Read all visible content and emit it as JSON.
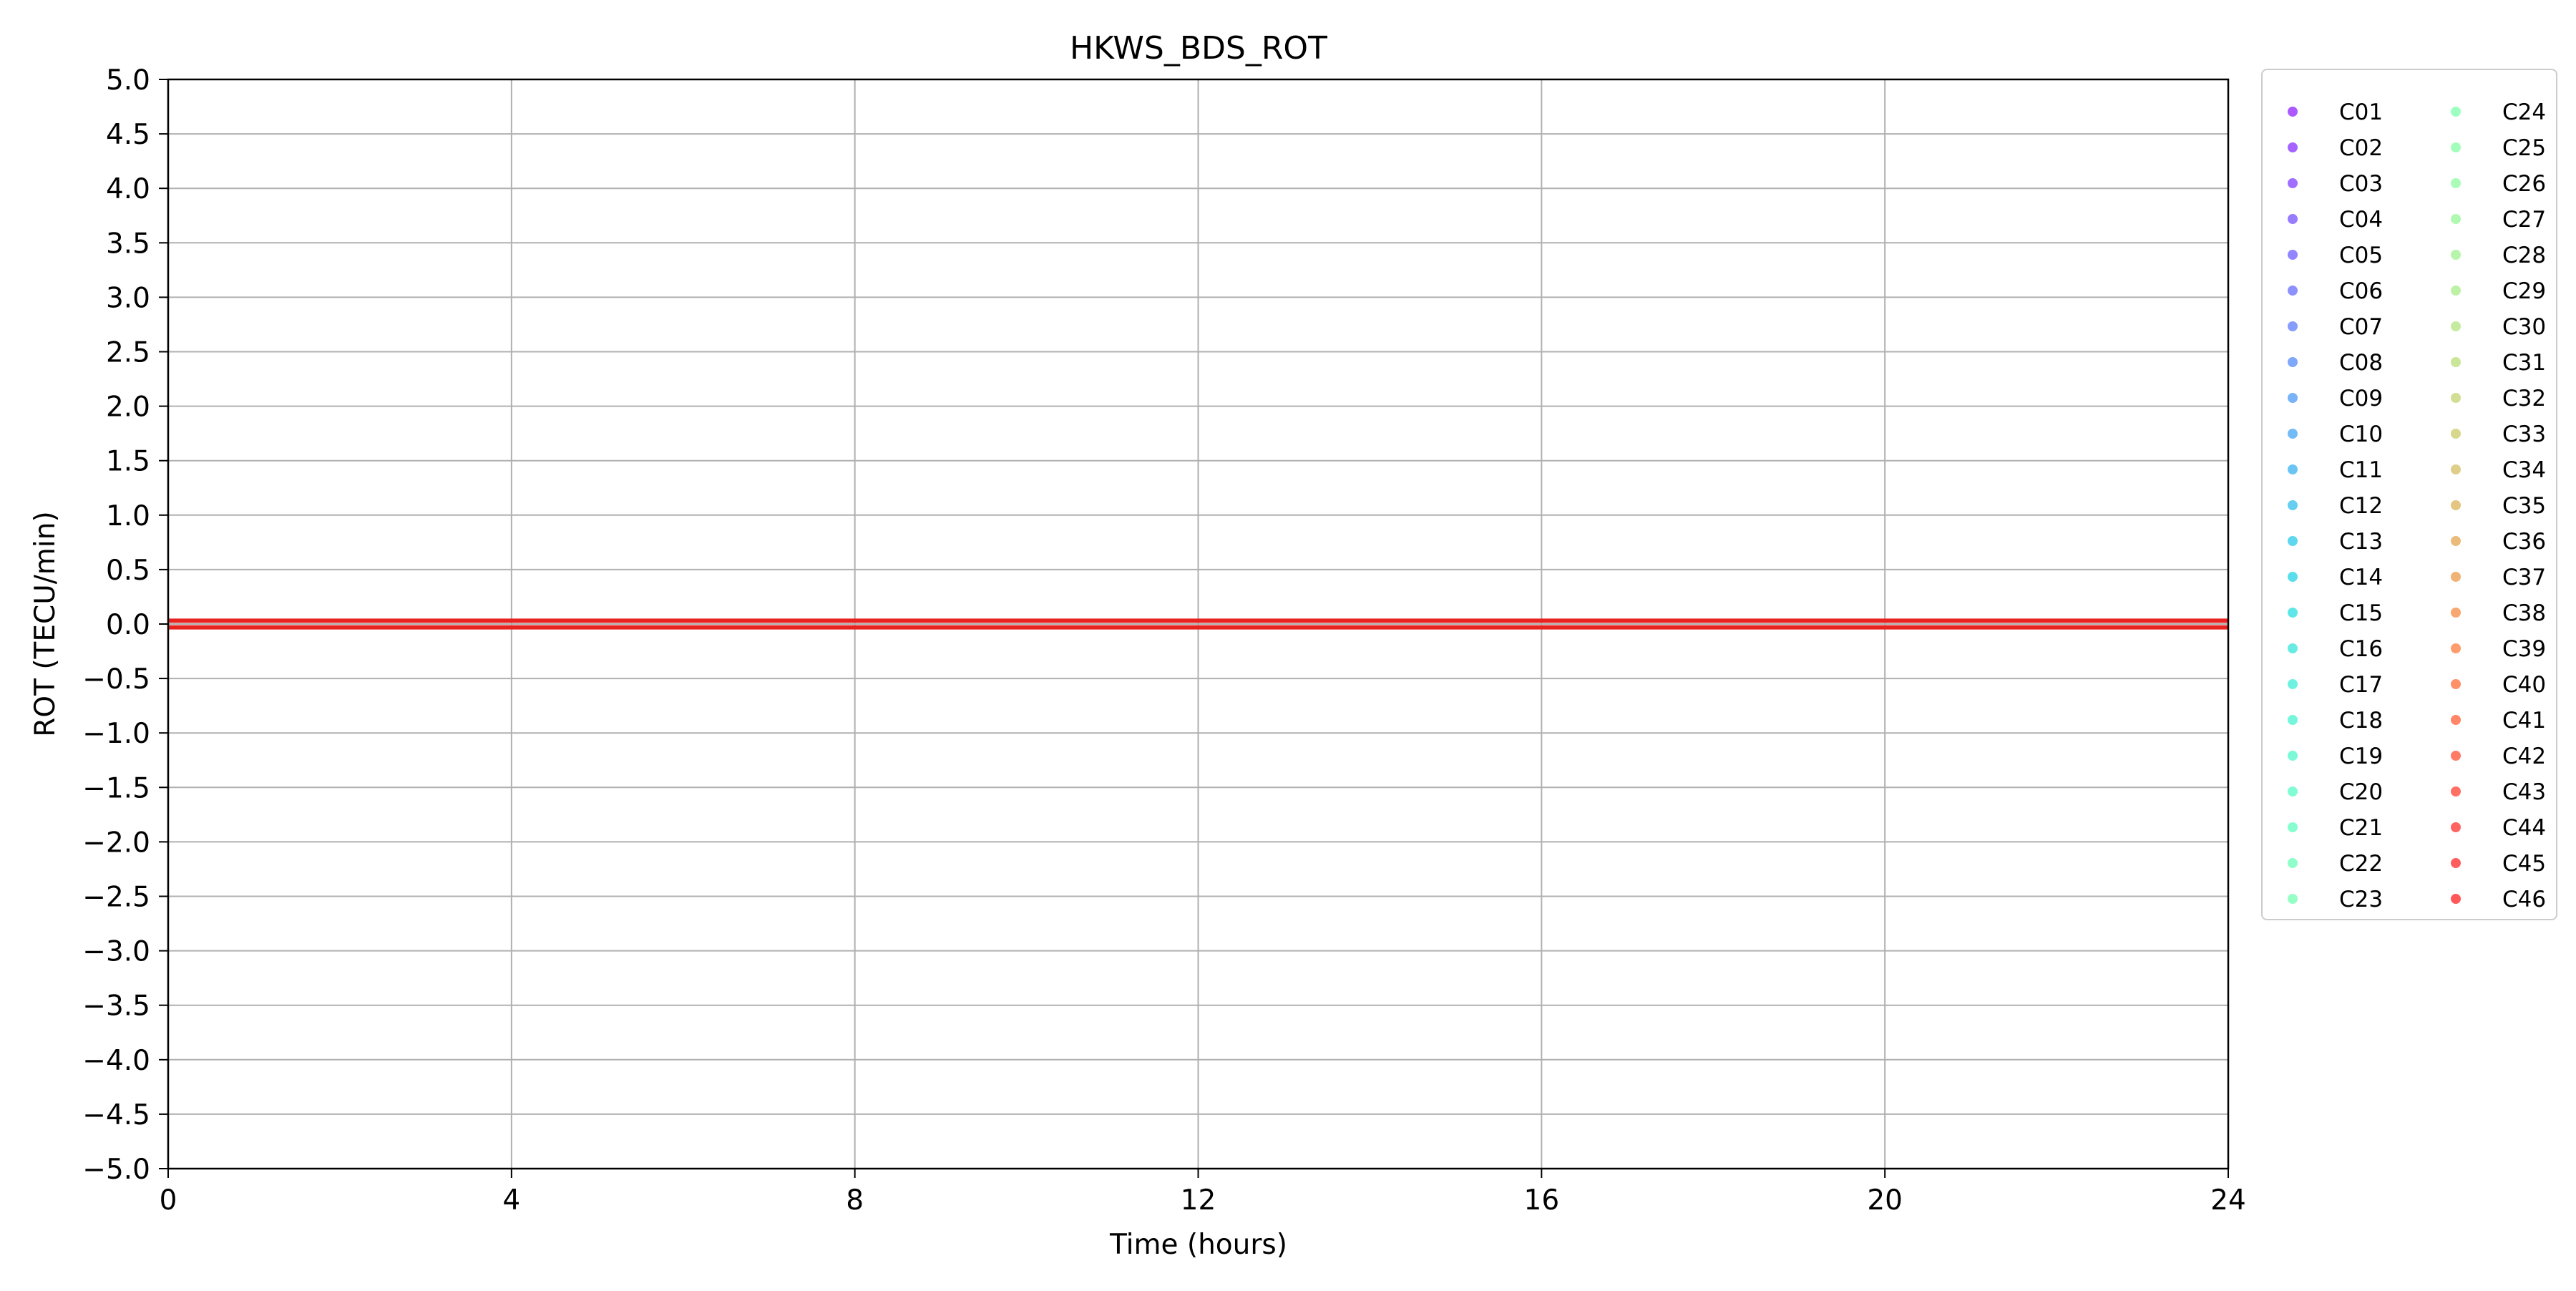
{
  "chart_data": {
    "type": "scatter",
    "title": "HKWS_BDS_ROT",
    "xlabel": "Time (hours)",
    "ylabel": "ROT (TECU/min)",
    "xlim": [
      0,
      24
    ],
    "ylim": [
      -5.0,
      5.0
    ],
    "xticks": [
      0,
      4,
      8,
      12,
      16,
      20,
      24
    ],
    "xtick_labels": [
      "0",
      "4",
      "8",
      "12",
      "16",
      "20",
      "24"
    ],
    "yticks": [
      5.0,
      4.5,
      4.0,
      3.5,
      3.0,
      2.5,
      2.0,
      1.5,
      1.0,
      0.5,
      0.0,
      -0.5,
      -1.0,
      -1.5,
      -2.0,
      -2.5,
      -3.0,
      -3.5,
      -4.0,
      -4.5,
      -5.0
    ],
    "ytick_labels": [
      "5.0",
      "4.5",
      "4.0",
      "3.5",
      "3.0",
      "2.5",
      "2.0",
      "1.5",
      "1.0",
      "0.5",
      "0.0",
      "−0.5",
      "−1.0",
      "−1.5",
      "−2.0",
      "−2.5",
      "−3.0",
      "−3.5",
      "−4.0",
      "−4.5",
      "−5.0"
    ],
    "grid": true,
    "legend_position": "outside right, two columns",
    "reference_lines": [
      {
        "y": 0.03,
        "color": "#e8221f"
      },
      {
        "y": -0.03,
        "color": "#e8221f"
      }
    ],
    "series": [
      {
        "name": "C01",
        "color": "#8000ff",
        "values": []
      },
      {
        "name": "C02",
        "color": "#7711ff",
        "values": []
      },
      {
        "name": "C03",
        "color": "#6c22ff",
        "values": []
      },
      {
        "name": "C04",
        "color": "#6234fe",
        "values": []
      },
      {
        "name": "C05",
        "color": "#5845fd",
        "values": []
      },
      {
        "name": "C06",
        "color": "#4e56fc",
        "values": []
      },
      {
        "name": "C07",
        "color": "#4467fa",
        "values": []
      },
      {
        "name": "C08",
        "color": "#3a78f8",
        "values": []
      },
      {
        "name": "C09",
        "color": "#3088f5",
        "values": []
      },
      {
        "name": "C10",
        "color": "#2697f2",
        "values": []
      },
      {
        "name": "C11",
        "color": "#1ca6ee",
        "values": []
      },
      {
        "name": "C12",
        "color": "#12b4ea",
        "values": []
      },
      {
        "name": "C13",
        "color": "#08c1e6",
        "values": []
      },
      {
        "name": "C14",
        "color": "#02cde1",
        "values": []
      },
      {
        "name": "C15",
        "color": "#0cd8db",
        "values": []
      },
      {
        "name": "C16",
        "color": "#16e1d6",
        "values": []
      },
      {
        "name": "C17",
        "color": "#20e9d0",
        "values": []
      },
      {
        "name": "C18",
        "color": "#2af0ca",
        "values": []
      },
      {
        "name": "C19",
        "color": "#34f6c3",
        "values": []
      },
      {
        "name": "C20",
        "color": "#3efabd",
        "values": []
      },
      {
        "name": "C21",
        "color": "#48fdb6",
        "values": []
      },
      {
        "name": "C22",
        "color": "#52ffae",
        "values": []
      },
      {
        "name": "C23",
        "color": "#5cffa7",
        "values": []
      },
      {
        "name": "C24",
        "color": "#68ff9f",
        "values": []
      },
      {
        "name": "C25",
        "color": "#72fd97",
        "values": []
      },
      {
        "name": "C26",
        "color": "#7cfa8f",
        "values": []
      },
      {
        "name": "C27",
        "color": "#86f686",
        "values": []
      },
      {
        "name": "C28",
        "color": "#90f07e",
        "values": []
      },
      {
        "name": "C29",
        "color": "#9ae975",
        "values": []
      },
      {
        "name": "C30",
        "color": "#a4e16c",
        "values": []
      },
      {
        "name": "C31",
        "color": "#aed863",
        "values": []
      },
      {
        "name": "C32",
        "color": "#b8cd5a",
        "values": []
      },
      {
        "name": "C33",
        "color": "#c2c151",
        "values": []
      },
      {
        "name": "C34",
        "color": "#ccb448",
        "values": []
      },
      {
        "name": "C35",
        "color": "#d6a63f",
        "values": []
      },
      {
        "name": "C36",
        "color": "#e09736",
        "values": []
      },
      {
        "name": "C37",
        "color": "#ea882d",
        "values": []
      },
      {
        "name": "C38",
        "color": "#f47824",
        "values": []
      },
      {
        "name": "C39",
        "color": "#fe671b",
        "values": []
      },
      {
        "name": "C40",
        "color": "#ff5618",
        "values": []
      },
      {
        "name": "C41",
        "color": "#ff4515",
        "values": []
      },
      {
        "name": "C42",
        "color": "#ff3412",
        "values": []
      },
      {
        "name": "C43",
        "color": "#ff220f",
        "values": []
      },
      {
        "name": "C44",
        "color": "#ff110c",
        "values": []
      },
      {
        "name": "C45",
        "color": "#ff0808",
        "values": []
      },
      {
        "name": "C46",
        "color": "#ff0000",
        "values": []
      }
    ]
  }
}
